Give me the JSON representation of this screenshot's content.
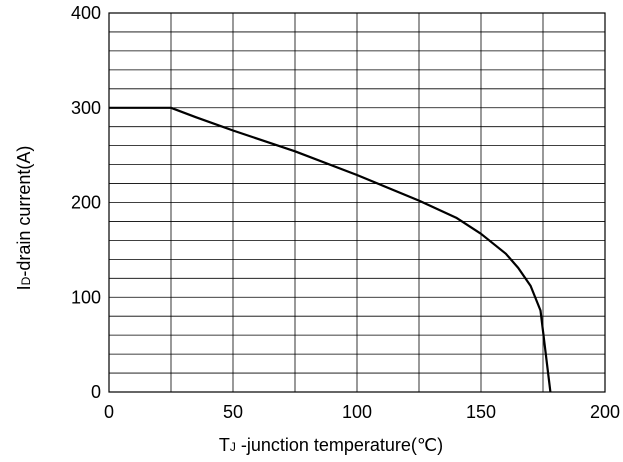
{
  "chart_data": {
    "type": "line",
    "title": "",
    "xlabel_parts": {
      "main": "T",
      "subscript": "J",
      "rest": " -junction temperature(℃)"
    },
    "ylabel_parts": {
      "main": "I",
      "subscript": "D",
      "rest": "-drain current(A)"
    },
    "xlim": [
      0,
      200
    ],
    "ylim": [
      0,
      400
    ],
    "x_ticks": [
      "0",
      "50",
      "100",
      "150",
      "200"
    ],
    "y_ticks": [
      "0",
      "100",
      "200",
      "300",
      "400"
    ],
    "grid": true,
    "grid_x_step": 25,
    "grid_y_step": 20,
    "series": [
      {
        "values": [
          {
            "x": 0,
            "y": 300
          },
          {
            "x": 25,
            "y": 300
          },
          {
            "x": 35,
            "y": 290
          },
          {
            "x": 50,
            "y": 276
          },
          {
            "x": 75,
            "y": 254
          },
          {
            "x": 100,
            "y": 229
          },
          {
            "x": 125,
            "y": 202
          },
          {
            "x": 140,
            "y": 184
          },
          {
            "x": 150,
            "y": 167
          },
          {
            "x": 160,
            "y": 146
          },
          {
            "x": 165,
            "y": 131
          },
          {
            "x": 170,
            "y": 112
          },
          {
            "x": 174,
            "y": 86
          },
          {
            "x": 178,
            "y": 0
          }
        ]
      }
    ]
  },
  "colors": {
    "line": "#000000",
    "grid": "#000000",
    "background": "#ffffff"
  }
}
